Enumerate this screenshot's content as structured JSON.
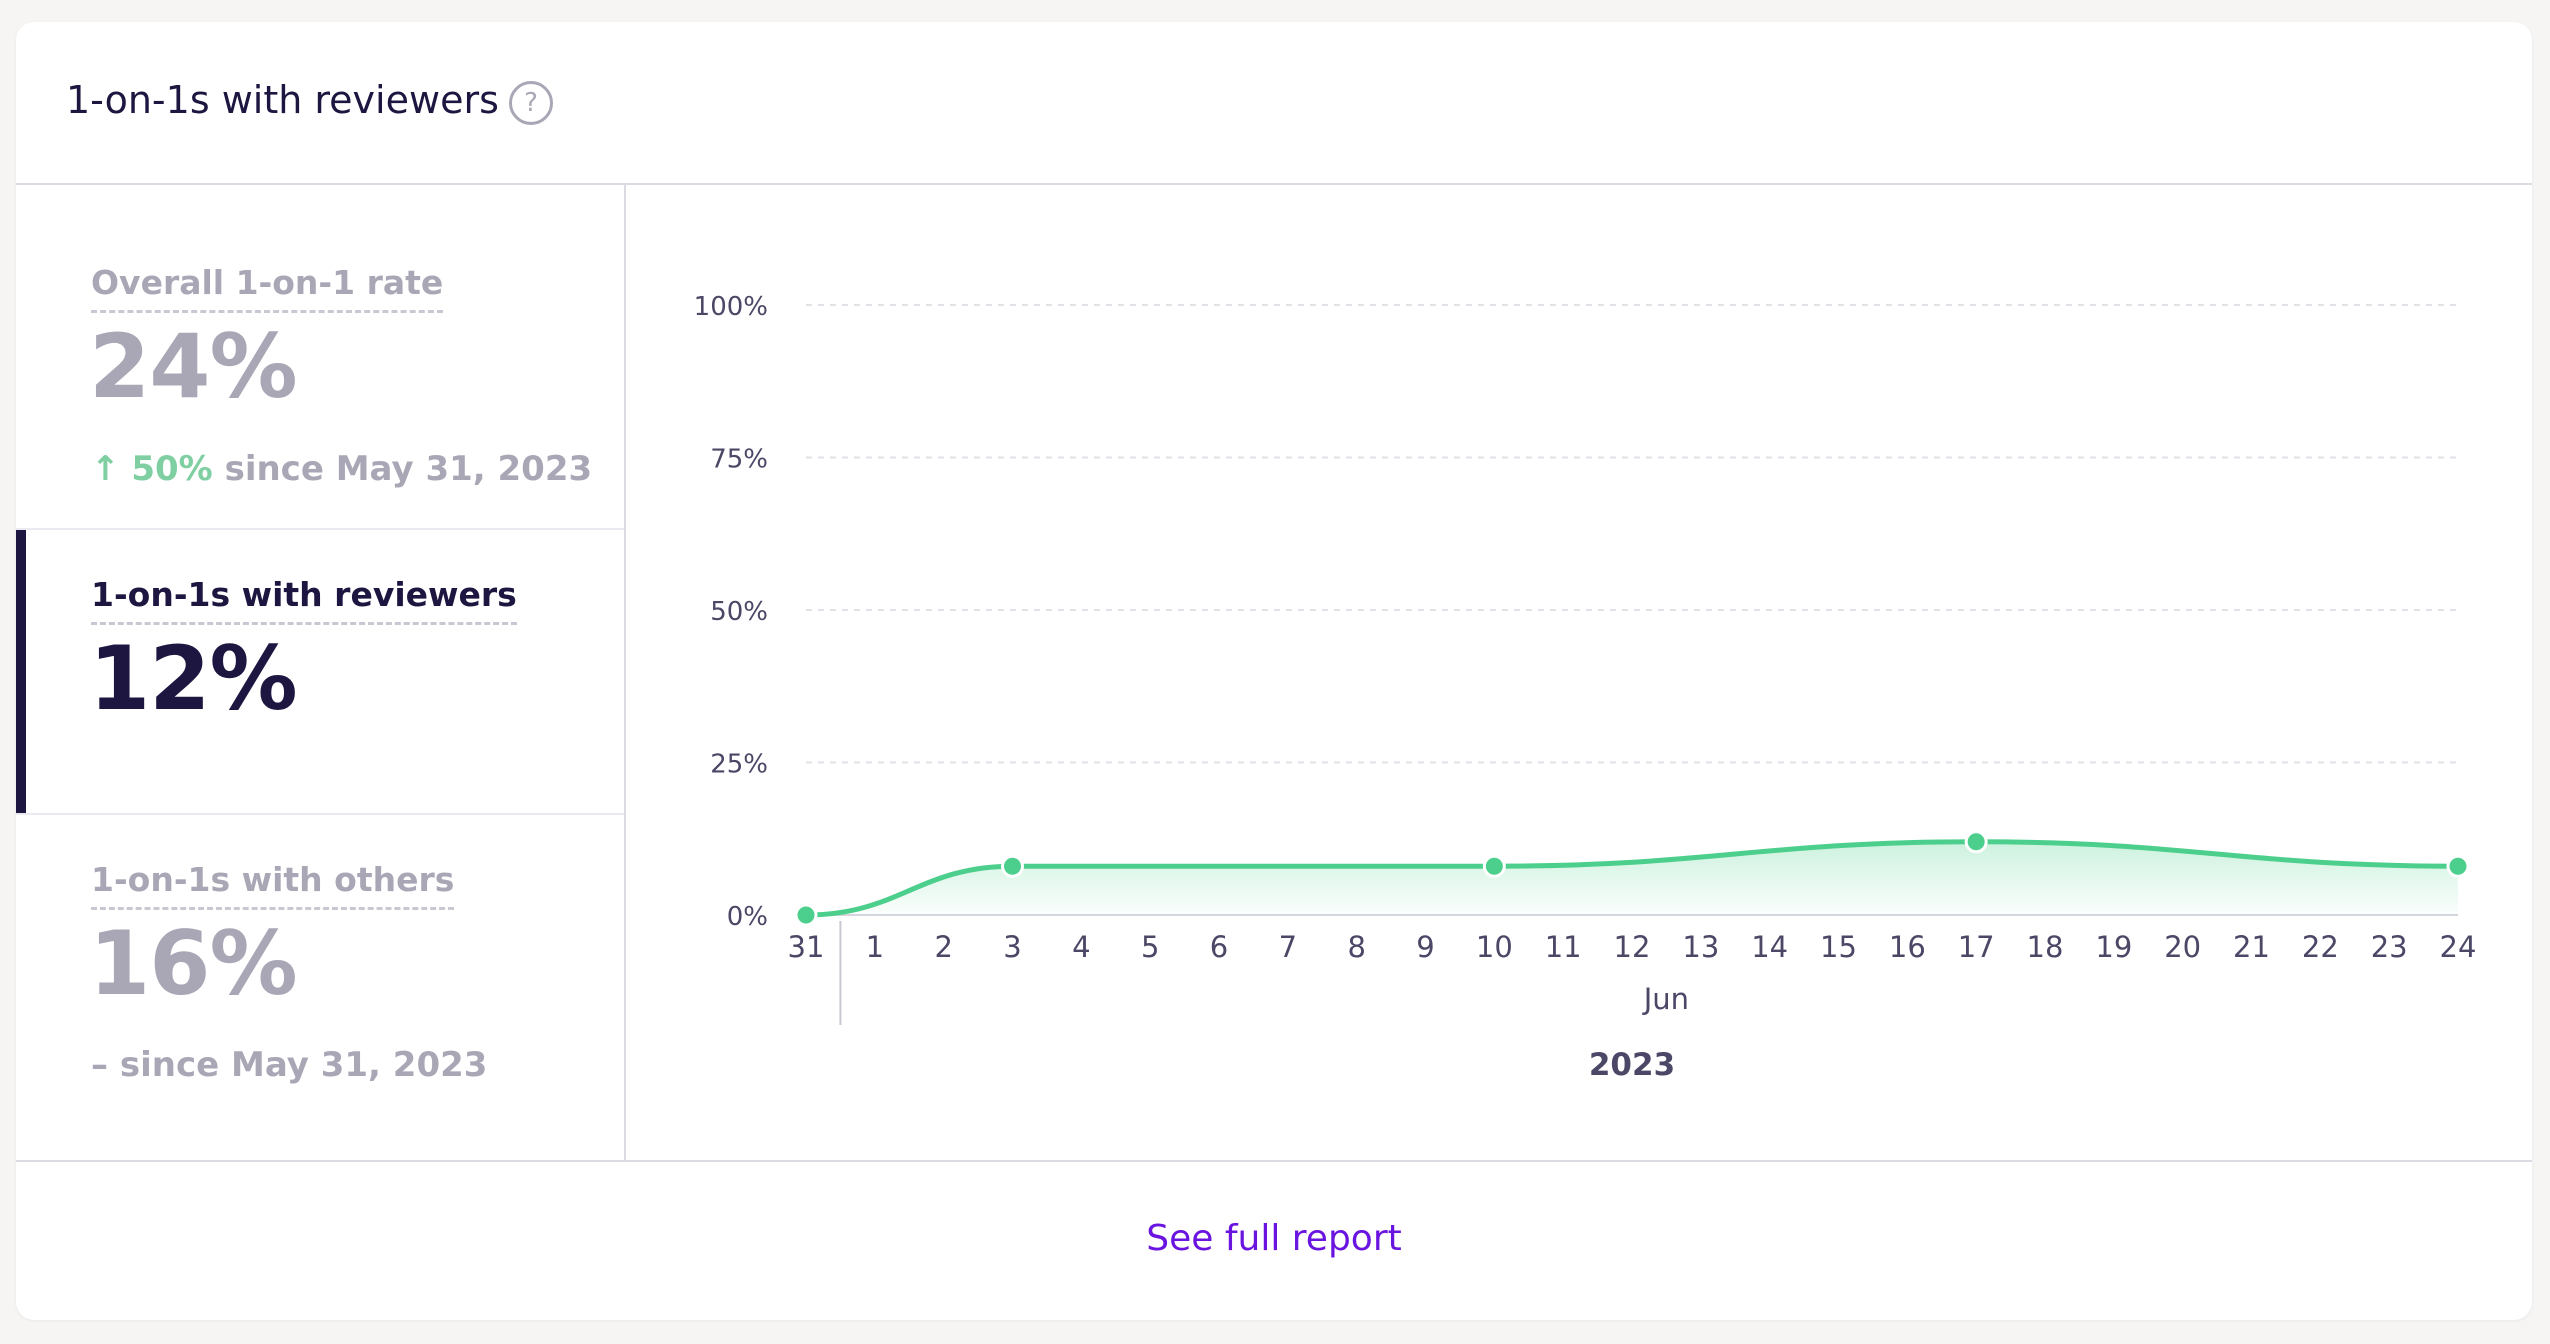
{
  "header": {
    "title": "1-on-1s with reviewers",
    "help_icon": "?"
  },
  "metrics": [
    {
      "label": "Overall 1-on-1 rate",
      "value": "24%",
      "change_arrow": "↑",
      "change_value": "50%",
      "change_text": "since May 31, 2023",
      "active": false
    },
    {
      "label": "1-on-1s with reviewers",
      "value": "12%",
      "active": true
    },
    {
      "label": "1-on-1s with others",
      "value": "16%",
      "change_dash": "–",
      "change_text": "since May 31, 2023",
      "active": false
    }
  ],
  "chart_data": {
    "type": "area",
    "x": [
      "2023-05-31",
      "2023-06-01",
      "2023-06-02",
      "2023-06-03",
      "2023-06-04",
      "2023-06-05",
      "2023-06-06",
      "2023-06-07",
      "2023-06-08",
      "2023-06-09",
      "2023-06-10",
      "2023-06-11",
      "2023-06-12",
      "2023-06-13",
      "2023-06-14",
      "2023-06-15",
      "2023-06-16",
      "2023-06-17",
      "2023-06-18",
      "2023-06-19",
      "2023-06-20",
      "2023-06-21",
      "2023-06-22",
      "2023-06-23",
      "2023-06-24"
    ],
    "tick_labels": [
      "31",
      "1",
      "2",
      "3",
      "4",
      "5",
      "6",
      "7",
      "8",
      "9",
      "10",
      "11",
      "12",
      "13",
      "14",
      "15",
      "16",
      "17",
      "18",
      "19",
      "20",
      "21",
      "22",
      "23",
      "24"
    ],
    "month_label": "Jun",
    "year_label": "2023",
    "points": [
      {
        "x": "2023-05-31",
        "y": 0
      },
      {
        "x": "2023-06-03",
        "y": 8
      },
      {
        "x": "2023-06-10",
        "y": 8
      },
      {
        "x": "2023-06-17",
        "y": 12
      },
      {
        "x": "2023-06-24",
        "y": 8
      }
    ],
    "y_ticks": [
      "0%",
      "25%",
      "50%",
      "75%",
      "100%"
    ],
    "ylim": [
      0,
      100
    ],
    "grid": true,
    "color": "#4ccf8c"
  },
  "footer": {
    "link_label": "See full report"
  },
  "colors": {
    "primary_text": "#1d1640",
    "muted_text": "#a9a7b6",
    "positive": "#7fcfa2",
    "link": "#6a14e0",
    "series": "#4ccf8c"
  }
}
